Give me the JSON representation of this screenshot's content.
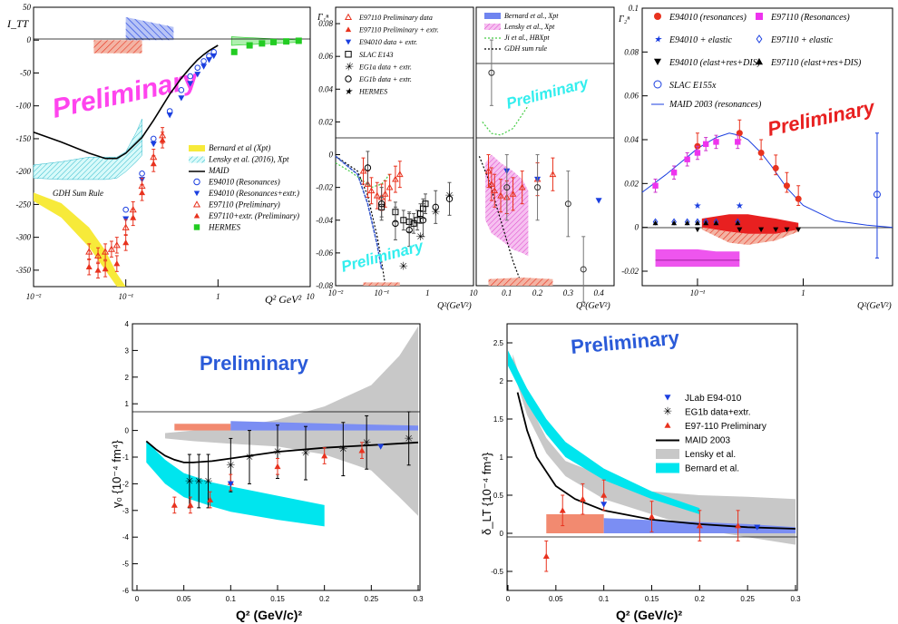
{
  "colors": {
    "red": "#e8321e",
    "blue": "#1b3fe0",
    "green": "#22cc22",
    "cyan": "#00e5ee",
    "gray": "#c8c8c8",
    "yellow": "#f7ea3a",
    "magenta": "#ee55dd",
    "prelim_magenta": "#ff44ee",
    "prelim_cyan": "#33eeee",
    "prelim_red": "#e82020",
    "prelim_blue": "#2a5ad8"
  },
  "chart_data": [
    {
      "id": "p1",
      "type": "scatter",
      "ylabel": "I_TT",
      "xlabel": "Q² GeV²",
      "xscale": "log",
      "xlim": [
        0.01,
        10
      ],
      "ylim": [
        -375,
        50
      ],
      "ytick_labels": [
        "50",
        "0",
        "-50",
        "-100",
        "-150",
        "-200",
        "-250",
        "-300",
        "-350"
      ],
      "xtick_labels": [
        "10⁻²",
        "10⁻¹",
        "1",
        "10"
      ],
      "watermark": "Preliminary",
      "band_label": "GDH Sum Rule",
      "legend": [
        "Bernard et al (Xpt)",
        "Lensky et al. (2016), Xpt",
        "MAID",
        "E94010 (Resonances)",
        "E94010 (Resonances+extr.)",
        "E97110 (Preliminary)",
        "E97110+extr. (Preliminary)",
        "HERMES"
      ],
      "series": [
        {
          "name": "MAID",
          "x": [
            0.01,
            0.02,
            0.04,
            0.06,
            0.08,
            0.1,
            0.15,
            0.2,
            0.3,
            0.4,
            0.5,
            0.6,
            0.7,
            0.8,
            1.0
          ],
          "y": [
            -140,
            -155,
            -172,
            -180,
            -180,
            -172,
            -148,
            -122,
            -82,
            -58,
            -42,
            -30,
            -22,
            -16,
            -8
          ]
        },
        {
          "name": "E94010 (Resonances)",
          "x": [
            0.1,
            0.15,
            0.2,
            0.3,
            0.4,
            0.5,
            0.6,
            0.7,
            0.8,
            0.9
          ],
          "y": [
            -258,
            -203,
            -150,
            -108,
            -76,
            -55,
            -42,
            -32,
            -24,
            -18
          ]
        },
        {
          "name": "E94010 (Resonances+extr.)",
          "x": [
            0.1,
            0.15,
            0.2,
            0.3,
            0.4,
            0.5,
            0.6,
            0.7,
            0.8,
            0.9
          ],
          "y": [
            -272,
            -212,
            -158,
            -114,
            -88,
            -66,
            -52,
            -40,
            -30,
            -24
          ]
        },
        {
          "name": "E97110 (Preliminary)",
          "x": [
            0.04,
            0.05,
            0.06,
            0.07,
            0.08,
            0.1,
            0.12,
            0.15,
            0.2,
            0.25
          ],
          "y": [
            -322,
            -328,
            -322,
            -318,
            -312,
            -285,
            -258,
            -222,
            -178,
            -145
          ]
        },
        {
          "name": "E97110+extr. (Preliminary)",
          "x": [
            0.04,
            0.05,
            0.06,
            0.08,
            0.1,
            0.12,
            0.15,
            0.2,
            0.25
          ],
          "y": [
            -345,
            -350,
            -348,
            -340,
            -308,
            -270,
            -232,
            -188,
            -152
          ]
        },
        {
          "name": "HERMES",
          "x": [
            1.5,
            2.2,
            3,
            4,
            5.5,
            7.5
          ],
          "y": [
            -18,
            -8,
            -5,
            -3,
            -2,
            -1
          ]
        }
      ]
    },
    {
      "id": "p2",
      "type": "scatter",
      "ylabel": "Γ₁ⁿ",
      "xlabel": "Q²(GeV²)",
      "ylim": [
        -0.08,
        0.09
      ],
      "ytick_labels": [
        "0.08",
        "0.06",
        "0.04",
        "0.02",
        "0",
        "-0.02",
        "-0.04",
        "-0.06",
        "-0.08"
      ],
      "left_xtick_labels": [
        "10⁻²",
        "10⁻¹",
        "1",
        "10"
      ],
      "right_xtick_labels": [
        "0.1",
        "0.2",
        "0.3",
        "0.4"
      ],
      "watermark": "Preliminary",
      "legend_left": [
        "E97110 Preliminary data",
        "E97110 Preliminary + extr.",
        "E94010 data + extr.",
        "SLAC E143",
        "EG1a data + extr.",
        "EG1b data + extr.",
        "HERMES"
      ],
      "legend_right": [
        "Bernard et al., Xpt",
        "Lensky et al., Xpt",
        "Ji et al., HBXpt",
        "GDH sum rule"
      ],
      "series": [
        {
          "name": "E97110 Preliminary data",
          "x": [
            0.04,
            0.05,
            0.06,
            0.08,
            0.1,
            0.12,
            0.15,
            0.2,
            0.25
          ],
          "y": [
            -0.01,
            -0.018,
            -0.022,
            -0.025,
            -0.026,
            -0.024,
            -0.02,
            -0.015,
            -0.012
          ]
        },
        {
          "name": "E94010 data + extr.",
          "x": [
            0.1,
            0.2,
            0.3,
            0.4,
            0.5,
            0.6,
            0.7,
            0.8,
            0.9
          ],
          "y": [
            -0.032,
            -0.035,
            -0.04,
            -0.041,
            -0.042,
            -0.04,
            -0.036,
            -0.033,
            -0.03
          ]
        },
        {
          "name": "EG1b data + extr.",
          "x": [
            0.05,
            0.1,
            0.2,
            0.4,
            0.8,
            1.5,
            3
          ],
          "y": [
            -0.008,
            -0.03,
            -0.042,
            -0.046,
            -0.04,
            -0.032,
            -0.027
          ]
        }
      ]
    },
    {
      "id": "p3",
      "type": "scatter",
      "ylabel": "Γ₂ⁿ",
      "xlabel": "Q²(GeV²)",
      "xscale": "log",
      "xlim": [
        0.03,
        7
      ],
      "ylim": [
        -0.02,
        0.1
      ],
      "ytick_labels": [
        "0.1",
        "0.08",
        "0.06",
        "0.04",
        "0.02",
        "0",
        "-0.02"
      ],
      "xtick_labels": [
        "10⁻¹",
        "1"
      ],
      "watermark": "Preliminary",
      "legend": [
        "E94010 (resonances)",
        "E97110 (Resonances)",
        "E94010 + elastic",
        "E97110 + elastic",
        "E94010 (elast+res+DIS)",
        "E97110 (elast+res+DIS)",
        "SLAC E155x",
        "MAID 2003 (resonances)"
      ],
      "series": [
        {
          "name": "MAID 2003 (resonances)",
          "x": [
            0.03,
            0.05,
            0.08,
            0.1,
            0.15,
            0.2,
            0.25,
            0.3,
            0.4,
            0.5,
            0.7,
            1,
            2,
            4,
            7
          ],
          "y": [
            0.016,
            0.024,
            0.032,
            0.036,
            0.041,
            0.043,
            0.042,
            0.04,
            0.034,
            0.028,
            0.018,
            0.01,
            0.003,
            0.001,
            0.0
          ]
        },
        {
          "name": "E94010 (resonances)",
          "x": [
            0.1,
            0.25,
            0.4,
            0.55,
            0.7,
            0.9
          ],
          "y": [
            0.037,
            0.043,
            0.034,
            0.027,
            0.019,
            0.013
          ]
        },
        {
          "name": "E97110 (Resonances)",
          "x": [
            0.04,
            0.06,
            0.08,
            0.1,
            0.12,
            0.15,
            0.24
          ],
          "y": [
            0.019,
            0.025,
            0.031,
            0.034,
            0.038,
            0.039,
            0.039
          ]
        },
        {
          "name": "SLAC E155x",
          "x": [
            5
          ],
          "y": [
            0.015
          ]
        }
      ]
    },
    {
      "id": "p4",
      "type": "scatter",
      "ylabel": "γ₀ {10⁻⁴ fm⁴}",
      "xlabel": "Q² (GeV/c)²",
      "xlim": [
        0,
        0.3
      ],
      "ylim": [
        -6,
        4
      ],
      "ytick_labels": [
        "4",
        "3",
        "2",
        "1",
        "0",
        "-1",
        "-2",
        "-3",
        "-4",
        "-5",
        "-6"
      ],
      "xtick_labels": [
        "0",
        "0.05",
        "0.1",
        "0.15",
        "0.2",
        "0.25",
        "0.3"
      ],
      "watermark": "Preliminary",
      "series": [
        {
          "name": "MAID 2003",
          "x": [
            0.01,
            0.02,
            0.03,
            0.04,
            0.05,
            0.06,
            0.08,
            0.1,
            0.12,
            0.15,
            0.2,
            0.25,
            0.3
          ],
          "y": [
            -0.4,
            -0.7,
            -0.95,
            -1.1,
            -1.2,
            -1.2,
            -1.15,
            -1.05,
            -0.95,
            -0.8,
            -0.65,
            -0.55,
            -0.45
          ]
        },
        {
          "name": "EG1b data+extr.",
          "x": [
            0.056,
            0.066,
            0.076,
            0.1,
            0.12,
            0.15,
            0.18,
            0.22,
            0.245,
            0.29
          ],
          "y": [
            -1.9,
            -1.9,
            -1.9,
            -1.3,
            -1.0,
            -0.8,
            -0.85,
            -0.7,
            -0.45,
            -0.3
          ]
        },
        {
          "name": "E97-110 Preliminary",
          "x": [
            0.04,
            0.057,
            0.078,
            0.1,
            0.15,
            0.2,
            0.24
          ],
          "y": [
            -2.8,
            -2.8,
            -2.6,
            -1.95,
            -1.35,
            -0.95,
            -0.75
          ]
        },
        {
          "name": "JLab E94-010",
          "x": [
            0.1,
            0.26
          ],
          "y": [
            -2.0,
            -0.6
          ]
        }
      ]
    },
    {
      "id": "p5",
      "type": "scatter",
      "ylabel": "δ_LT {10⁻⁴ fm⁴}",
      "xlabel": "Q² (GeV/c)²",
      "xlim": [
        0,
        0.3
      ],
      "ylim": [
        -0.75,
        2.75
      ],
      "ytick_labels": [
        "2.5",
        "2",
        "1.5",
        "1",
        "0.5",
        "0",
        "-0.5"
      ],
      "xtick_labels": [
        "0",
        "0.05",
        "0.1",
        "0.15",
        "0.2",
        "0.25",
        "0.3"
      ],
      "watermark": "Preliminary",
      "legend": [
        "JLab E94-010",
        "EG1b data+extr.",
        "E97-110 Preliminary",
        "MAID 2003",
        "Lensky et al.",
        "Bernard et al."
      ],
      "series": [
        {
          "name": "MAID 2003",
          "x": [
            0.01,
            0.02,
            0.03,
            0.05,
            0.07,
            0.1,
            0.15,
            0.2,
            0.25,
            0.3
          ],
          "y": [
            1.85,
            1.35,
            1.0,
            0.62,
            0.45,
            0.3,
            0.18,
            0.12,
            0.08,
            0.06
          ]
        },
        {
          "name": "E97-110 Preliminary",
          "x": [
            0.04,
            0.057,
            0.078,
            0.1,
            0.15,
            0.2,
            0.24
          ],
          "y": [
            -0.3,
            0.3,
            0.45,
            0.5,
            0.22,
            0.1,
            0.1
          ]
        },
        {
          "name": "JLab E94-010",
          "x": [
            0.1,
            0.26
          ],
          "y": [
            0.38,
            0.08
          ]
        }
      ]
    }
  ]
}
